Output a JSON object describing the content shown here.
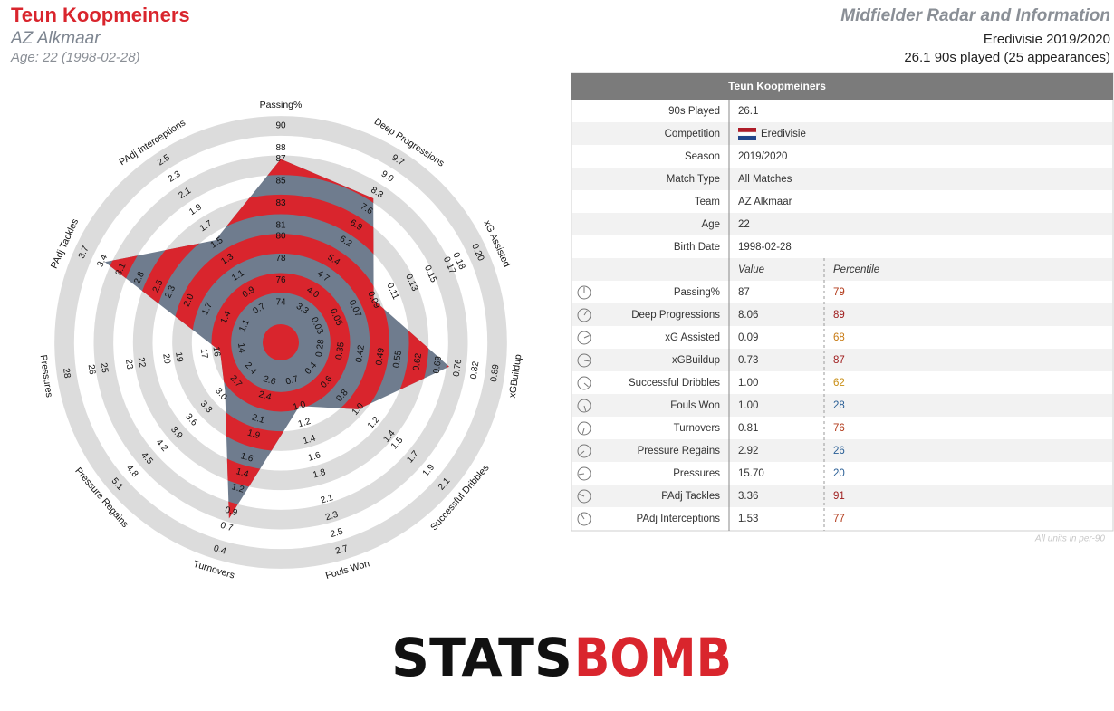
{
  "header": {
    "name": "Teun Koopmeiners",
    "team": "AZ Alkmaar",
    "age": "Age: 22 (1998-02-28)",
    "title": "Midfielder Radar and Information",
    "competition": "Eredivisie 2019/2020",
    "played": "26.1 90s played (25 appearances)"
  },
  "chart_data": {
    "type": "radar",
    "axes": [
      "Passing%",
      "Deep Progressions",
      "xG Assisted",
      "xGBuildup",
      "Successful Dribbles",
      "Fouls Won",
      "Turnovers",
      "Pressure Regains",
      "Pressures",
      "PAdj Tackles",
      "PAdj Interceptions"
    ],
    "values": [
      87,
      8.06,
      0.09,
      0.73,
      1.0,
      1.0,
      0.81,
      2.92,
      15.7,
      3.36,
      1.53
    ],
    "lims": [
      [
        74,
        90
      ],
      [
        3.3,
        9.7
      ],
      [
        0.03,
        0.2
      ],
      [
        0.28,
        0.89
      ],
      [
        0.4,
        2.1
      ],
      [
        0.7,
        2.7
      ],
      [
        2.6,
        0.4
      ],
      [
        2.4,
        5.1
      ],
      [
        14,
        28
      ],
      [
        1.1,
        3.7
      ],
      [
        0.7,
        2.5
      ]
    ],
    "ticks": [
      [
        74,
        76,
        78,
        80,
        81,
        83,
        85,
        87,
        88,
        90
      ],
      [
        3.3,
        {
          "value": 4,
          "label": "4.0"
        },
        4.7,
        5.4,
        6.2,
        6.9,
        7.6,
        8.3,
        {
          "value": 9,
          "label": "9.0"
        },
        9.7
      ],
      [
        0.03,
        0.05,
        0.07,
        0.09,
        0.11,
        0.13,
        0.15,
        0.17,
        0.18,
        {
          "value": 0.2,
          "label": "0.20"
        }
      ],
      [
        0.28,
        0.35,
        0.42,
        0.49,
        0.55,
        0.62,
        0.69,
        0.76,
        0.82,
        0.89
      ],
      [
        0.4,
        0.6,
        0.8,
        {
          "value": 1,
          "label": "1.0"
        },
        1.2,
        1.4,
        1.5,
        1.7,
        1.9,
        2.1
      ],
      [
        0.7,
        {
          "value": 1,
          "label": "1.0"
        },
        1.2,
        1.4,
        1.6,
        1.8,
        2.1,
        2.3,
        2.5,
        2.7
      ],
      [
        2.6,
        2.4,
        2.1,
        1.9,
        1.6,
        1.4,
        1.2,
        0.9,
        0.7,
        0.4
      ],
      [
        2.4,
        2.7,
        {
          "value": 3,
          "label": "3.0"
        },
        3.3,
        3.6,
        3.9,
        4.2,
        4.5,
        4.8,
        5.1
      ],
      [
        14,
        16,
        17,
        19,
        20,
        22,
        23,
        25,
        26,
        28
      ],
      [
        1.1,
        1.4,
        1.7,
        {
          "value": 2,
          "label": "2.0"
        },
        2.3,
        2.5,
        2.8,
        3.1,
        3.4,
        3.7
      ],
      [
        0.7,
        0.9,
        1.1,
        1.3,
        1.5,
        1.7,
        1.9,
        2.1,
        2.3,
        2.5
      ]
    ],
    "color": "#d9252d",
    "alt_color": "#6f7c8e",
    "band_color": "#dcdcdc"
  },
  "table": {
    "title": "Teun Koopmeiners",
    "info": [
      [
        "90s Played",
        "26.1"
      ],
      [
        "Competition",
        "Eredivisie"
      ],
      [
        "Season",
        "2019/2020"
      ],
      [
        "Match Type",
        "All Matches"
      ],
      [
        "Team",
        "AZ Alkmaar"
      ],
      [
        "Age",
        "22"
      ],
      [
        "Birth Date",
        "1998-02-28"
      ]
    ],
    "columns": [
      "Value",
      "Percentile"
    ],
    "stats": [
      {
        "label": "Passing%",
        "value": "87",
        "percentile": "79",
        "color": "#b23a1a"
      },
      {
        "label": "Deep Progressions",
        "value": "8.06",
        "percentile": "89",
        "color": "#9e1b1b"
      },
      {
        "label": "xG Assisted",
        "value": "0.09",
        "percentile": "68",
        "color": "#c87a12"
      },
      {
        "label": "xGBuildup",
        "value": "0.73",
        "percentile": "87",
        "color": "#9e1b1b"
      },
      {
        "label": "Successful Dribbles",
        "value": "1.00",
        "percentile": "62",
        "color": "#c88d12"
      },
      {
        "label": "Fouls Won",
        "value": "1.00",
        "percentile": "28",
        "color": "#2a5f96"
      },
      {
        "label": "Turnovers",
        "value": "0.81",
        "percentile": "76",
        "color": "#b23a1a"
      },
      {
        "label": "Pressure Regains",
        "value": "2.92",
        "percentile": "26",
        "color": "#2a5f96"
      },
      {
        "label": "Pressures",
        "value": "15.70",
        "percentile": "20",
        "color": "#2a5f96"
      },
      {
        "label": "PAdj Tackles",
        "value": "3.36",
        "percentile": "91",
        "color": "#9e1b1b"
      },
      {
        "label": "PAdj Interceptions",
        "value": "1.53",
        "percentile": "77",
        "color": "#b23a1a"
      }
    ],
    "note": "All units in per-90"
  },
  "logo": [
    "STATS",
    "BOMB"
  ]
}
